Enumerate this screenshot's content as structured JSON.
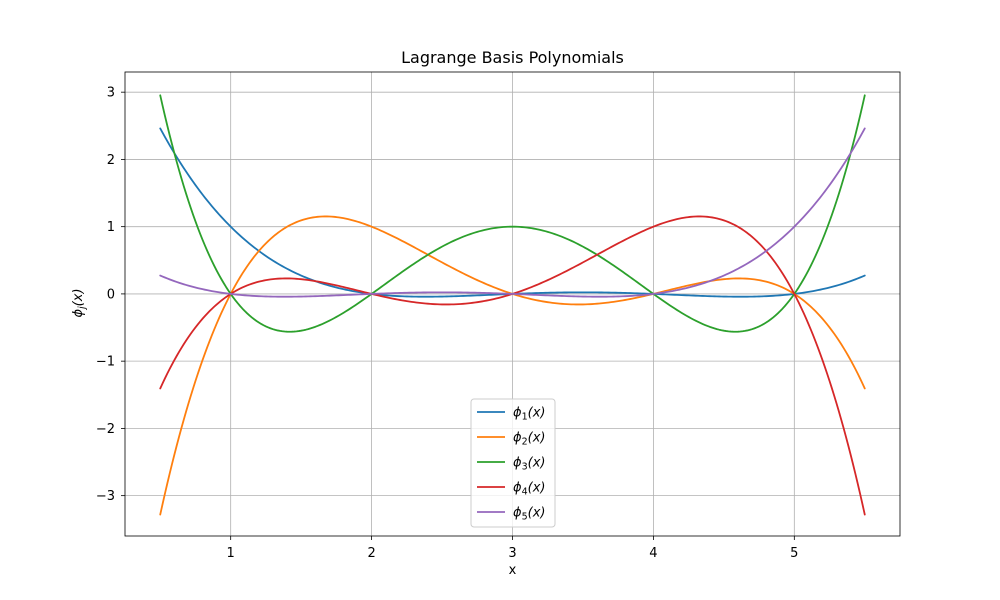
{
  "chart_data": {
    "type": "line",
    "title": "Lagrange Basis Polynomials",
    "xlabel": "x",
    "ylabel": "ϕj(x)",
    "xlim": [
      0.25,
      5.75
    ],
    "ylim": [
      -3.6,
      3.3
    ],
    "x_ticks": [
      1,
      2,
      3,
      4,
      5
    ],
    "y_ticks": [
      -3,
      -2,
      -1,
      0,
      1,
      2,
      3
    ],
    "x_tick_labels": [
      "1",
      "2",
      "3",
      "4",
      "5"
    ],
    "y_tick_labels": [
      "−3",
      "−2",
      "−1",
      "0",
      "1",
      "2",
      "3"
    ],
    "grid": true,
    "legend_position": "lower-center",
    "nodes": [
      1,
      2,
      3,
      4,
      5
    ],
    "x_range": [
      0.5,
      5.5
    ],
    "series": [
      {
        "name": "ϕ1(x)",
        "color": "#1f77b4",
        "x": [
          0.5,
          0.75,
          1.0,
          1.25,
          1.5,
          1.75,
          2.0,
          2.25,
          2.5,
          2.75,
          3.0,
          3.25,
          3.5,
          3.75,
          4.0,
          4.25,
          4.5,
          4.75,
          5.0,
          5.25,
          5.5
        ],
        "y": [
          2.4609,
          1.6115,
          1.0,
          0.5771,
          0.3047,
          0.1443,
          0.0,
          -0.0288,
          -0.0234,
          -0.0124,
          0.0,
          0.0079,
          0.0234,
          0.0174,
          0.0,
          -0.0332,
          -0.0391,
          -0.032,
          0.0,
          0.0967,
          0.2734
        ]
      },
      {
        "name": "ϕ2(x)",
        "color": "#ff7f0e",
        "x": [
          0.5,
          0.75,
          1.0,
          1.25,
          1.5,
          1.75,
          2.0,
          2.25,
          2.5,
          2.75,
          3.0,
          3.25,
          3.5,
          3.75,
          4.0,
          4.25,
          4.5,
          4.75,
          5.0,
          5.25,
          5.5
        ],
        "y": [
          -3.2813,
          -1.2305,
          0.0,
          0.7178,
          1.0938,
          1.1494,
          1.0,
          0.7471,
          0.4688,
          0.21,
          0.0,
          -0.1221,
          -0.1563,
          -0.1084,
          0.0,
          0.1611,
          0.2344,
          0.1855,
          0.0,
          -0.4189,
          -1.4063
        ]
      },
      {
        "name": "ϕ3(x)",
        "color": "#2ca02c",
        "x": [
          0.5,
          0.75,
          1.0,
          1.25,
          1.5,
          1.75,
          2.0,
          2.25,
          2.5,
          2.75,
          3.0,
          3.25,
          3.5,
          3.75,
          4.0,
          4.25,
          4.5,
          4.75,
          5.0,
          5.25,
          5.5
        ],
        "y": [
          2.9531,
          1.1221,
          0.0,
          -0.5127,
          -0.5273,
          -0.3418,
          0.0,
          0.3589,
          0.7031,
          0.9302,
          1.0,
          0.9302,
          0.7031,
          0.3589,
          0.0,
          -0.3418,
          -0.5273,
          -0.5127,
          0.0,
          1.1221,
          2.9531
        ]
      },
      {
        "name": "ϕ4(x)",
        "color": "#d62728",
        "x": [
          0.5,
          0.75,
          1.0,
          1.25,
          1.5,
          1.75,
          2.0,
          2.25,
          2.5,
          2.75,
          3.0,
          3.25,
          3.5,
          3.75,
          4.0,
          4.25,
          4.5,
          4.75,
          5.0,
          5.25,
          5.5
        ],
        "y": [
          -1.4063,
          -0.4189,
          0.0,
          0.1855,
          0.2344,
          0.1611,
          0.0,
          -0.1084,
          -0.1563,
          -0.1221,
          0.0,
          0.21,
          0.4688,
          0.7471,
          1.0,
          1.1494,
          1.0938,
          0.7178,
          0.0,
          -1.2305,
          -3.2813
        ]
      },
      {
        "name": "ϕ5(x)",
        "color": "#9467bd",
        "x": [
          0.5,
          0.75,
          1.0,
          1.25,
          1.5,
          1.75,
          2.0,
          2.25,
          2.5,
          2.75,
          3.0,
          3.25,
          3.5,
          3.75,
          4.0,
          4.25,
          4.5,
          4.75,
          5.0,
          5.25,
          5.5
        ],
        "y": [
          0.2734,
          0.0967,
          0.0,
          -0.032,
          -0.0391,
          -0.0332,
          0.0,
          0.0174,
          0.0234,
          0.0079,
          0.0,
          -0.0124,
          -0.0234,
          -0.0288,
          0.0,
          0.1443,
          0.3047,
          0.5771,
          1.0,
          1.6115,
          2.4609
        ]
      }
    ]
  }
}
